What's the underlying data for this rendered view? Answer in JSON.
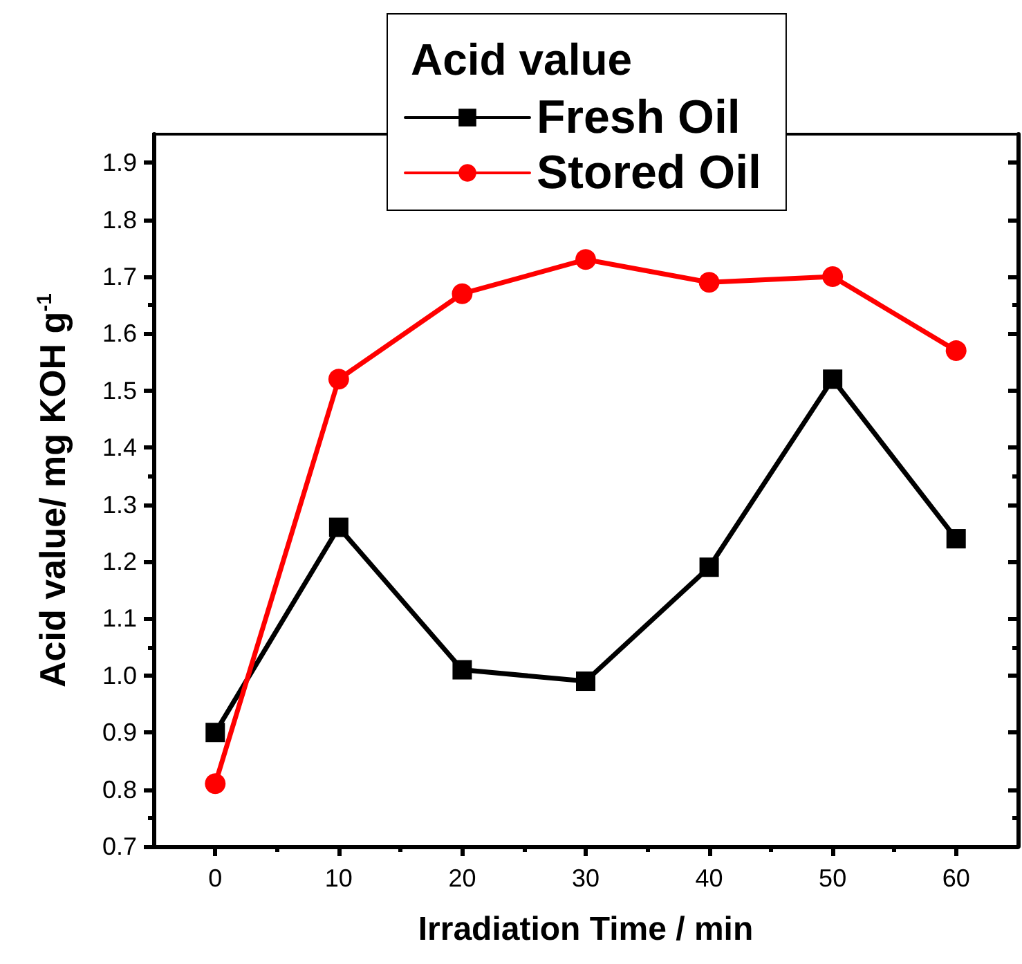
{
  "chart_data": {
    "type": "line",
    "legend_title": "Acid value",
    "xlabel": "Irradiation Time / min",
    "ylabel": "Acid value/ mg KOH g$^{-1}$",
    "x": [
      0,
      10,
      20,
      30,
      40,
      50,
      60
    ],
    "series": [
      {
        "name": "Fresh Oil",
        "color": "#000000",
        "marker": "square",
        "values": [
          0.9,
          1.26,
          1.01,
          0.99,
          1.19,
          1.52,
          1.24
        ]
      },
      {
        "name": "Stored Oil",
        "color": "#ff0000",
        "marker": "circle",
        "values": [
          0.81,
          1.52,
          1.67,
          1.73,
          1.69,
          1.7,
          1.57
        ]
      }
    ],
    "xlim": [
      -5,
      65
    ],
    "xticks": [
      0,
      10,
      20,
      30,
      40,
      50,
      60
    ],
    "ylim": [
      0.7,
      1.95
    ],
    "yticks": [
      0.7,
      0.8,
      0.9,
      {
        "value": 1,
        "label": "1.0"
      },
      1.1,
      1.2,
      1.3,
      1.4,
      1.5,
      1.6,
      1.7,
      1.8,
      1.9
    ],
    "grid": false,
    "legend": "top",
    "line_style": "solid"
  }
}
